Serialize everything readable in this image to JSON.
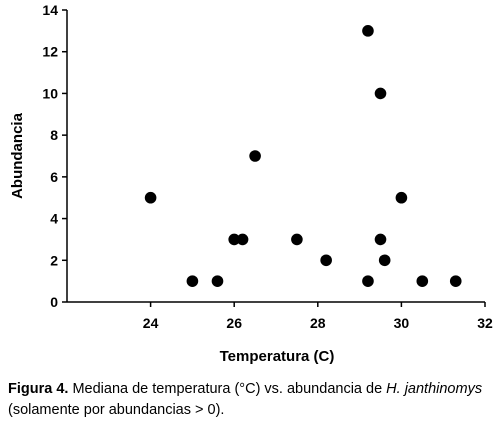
{
  "chart_data": {
    "type": "scatter",
    "xlabel": "Temperatura (C)",
    "ylabel": "Abundancia",
    "xlim": [
      22,
      32
    ],
    "ylim": [
      0,
      14
    ],
    "xticks": [
      24,
      26,
      28,
      30,
      32
    ],
    "yticks": [
      0,
      2,
      4,
      6,
      8,
      10,
      12,
      14
    ],
    "grid": false,
    "legend": "none",
    "marker_color": "#000000",
    "points": [
      {
        "x": 24.0,
        "y": 5
      },
      {
        "x": 25.0,
        "y": 1
      },
      {
        "x": 25.6,
        "y": 1
      },
      {
        "x": 26.0,
        "y": 3
      },
      {
        "x": 26.2,
        "y": 3
      },
      {
        "x": 26.5,
        "y": 7
      },
      {
        "x": 27.5,
        "y": 3
      },
      {
        "x": 28.2,
        "y": 2
      },
      {
        "x": 29.2,
        "y": 13
      },
      {
        "x": 29.2,
        "y": 1
      },
      {
        "x": 29.5,
        "y": 10
      },
      {
        "x": 29.5,
        "y": 3
      },
      {
        "x": 29.6,
        "y": 2
      },
      {
        "x": 30.0,
        "y": 5
      },
      {
        "x": 30.5,
        "y": 1
      },
      {
        "x": 31.3,
        "y": 1
      }
    ]
  },
  "caption": {
    "label": "Figura 4.",
    "text_before": "  Mediana de temperatura (°C) vs. abundancia de ",
    "species": "H. janthinomys",
    "text_after": " (solamente por abundancias > 0)."
  }
}
